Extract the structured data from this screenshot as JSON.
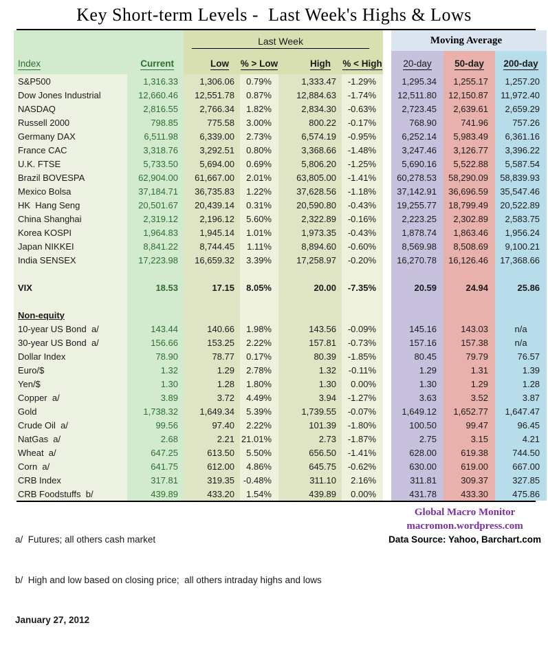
{
  "title": "Key Short-term Levels -  Last Week's Highs & Lows",
  "colors": {
    "green_band": "#d2ebcf",
    "name_cells": "#edf1e2",
    "olive_band": "#d8dfb0",
    "low_high_cells": "#dfe4c4",
    "pct_cells": "#eef2dc",
    "moving_avg_band": "#dce6f1",
    "ma20_col": "#c8c1dd",
    "ma50_col": "#e9b1ab",
    "ma200_col": "#b7dcea",
    "green_text": "#2e6d30",
    "brand_purple": "#7a30a0"
  },
  "table": {
    "group_last_week": "Last Week",
    "group_moving_average": "Moving Average",
    "columns": {
      "index": "Index",
      "current": "Current",
      "low": "Low",
      "pct_above_low": "% > Low",
      "high": "High",
      "pct_below_high": "% < High",
      "ma20": "20-day",
      "ma50": "50-day",
      "ma200": "200-day"
    },
    "rows": [
      {
        "type": "data",
        "name": "S&P500",
        "values": [
          "1,316.33",
          "1,306.06",
          "0.79%",
          "1,333.47",
          "-1.29%",
          "1,295.34",
          "1,255.17",
          "1,257.20"
        ]
      },
      {
        "type": "data",
        "name": "Dow Jones Industrial",
        "values": [
          "12,660.46",
          "12,551.78",
          "0.87%",
          "12,884.63",
          "-1.74%",
          "12,511.80",
          "12,150.87",
          "11,972.40"
        ]
      },
      {
        "type": "data",
        "name": "NASDAQ",
        "values": [
          "2,816.55",
          "2,766.34",
          "1.82%",
          "2,834.30",
          "-0.63%",
          "2,723.45",
          "2,639.61",
          "2,659.29"
        ]
      },
      {
        "type": "data",
        "name": "Russell 2000",
        "values": [
          "798.85",
          "775.58",
          "3.00%",
          "800.22",
          "-0.17%",
          "768.90",
          "741.96",
          "757.26"
        ]
      },
      {
        "type": "data",
        "name": "Germany DAX",
        "values": [
          "6,511.98",
          "6,339.00",
          "2.73%",
          "6,574.19",
          "-0.95%",
          "6,252.14",
          "5,983.49",
          "6,361.16"
        ]
      },
      {
        "type": "data",
        "name": "France CAC",
        "values": [
          "3,318.76",
          "3,292.51",
          "0.80%",
          "3,368.66",
          "-1.48%",
          "3,247.46",
          "3,126.77",
          "3,396.22"
        ]
      },
      {
        "type": "data",
        "name": "U.K. FTSE",
        "values": [
          "5,733.50",
          "5,694.00",
          "0.69%",
          "5,806.20",
          "-1.25%",
          "5,690.16",
          "5,522.88",
          "5,587.54"
        ]
      },
      {
        "type": "data",
        "name": "Brazil BOVESPA",
        "values": [
          "62,904.00",
          "61,667.00",
          "2.01%",
          "63,805.00",
          "-1.41%",
          "60,278.53",
          "58,290.09",
          "58,839.93"
        ]
      },
      {
        "type": "data",
        "name": "Mexico Bolsa",
        "values": [
          "37,184.71",
          "36,735.83",
          "1.22%",
          "37,628.56",
          "-1.18%",
          "37,142.91",
          "36,696.59",
          "35,547.46"
        ]
      },
      {
        "type": "data",
        "name": "HK  Hang Seng",
        "values": [
          "20,501.67",
          "20,439.14",
          "0.31%",
          "20,590.80",
          "-0.43%",
          "19,255.77",
          "18,799.49",
          "20,522.89"
        ]
      },
      {
        "type": "data",
        "name": "China Shanghai",
        "values": [
          "2,319.12",
          "2,196.12",
          "5.60%",
          "2,322.89",
          "-0.16%",
          "2,223.25",
          "2,302.89",
          "2,583.75"
        ]
      },
      {
        "type": "data",
        "name": "Korea KOSPI",
        "values": [
          "1,964.83",
          "1,945.14",
          "1.01%",
          "1,973.35",
          "-0.43%",
          "1,878.74",
          "1,863.46",
          "1,956.24"
        ]
      },
      {
        "type": "data",
        "name": "Japan NIKKEI",
        "values": [
          "8,841.22",
          "8,744.45",
          "1.11%",
          "8,894.60",
          "-0.60%",
          "8,569.98",
          "8,508.69",
          "9,100.21"
        ]
      },
      {
        "type": "data",
        "name": "India SENSEX",
        "values": [
          "17,223.98",
          "16,659.32",
          "3.39%",
          "17,258.97",
          "-0.20%",
          "16,270.78",
          "16,126.46",
          "17,368.66"
        ]
      },
      {
        "type": "spacer",
        "height": 8
      },
      {
        "type": "vix",
        "name": "VIX",
        "values": [
          "18.53",
          "17.15",
          "8.05%",
          "20.00",
          "-7.35%",
          "20.59",
          "24.94",
          "25.86"
        ]
      },
      {
        "type": "spacer",
        "height": 12
      },
      {
        "type": "section",
        "name": "Non-equity"
      },
      {
        "type": "data",
        "name": "10-year US Bond  a/",
        "values": [
          "143.44",
          "140.66",
          "1.98%",
          "143.56",
          "-0.09%",
          "145.16",
          "143.03",
          "n/a"
        ]
      },
      {
        "type": "data",
        "name": "30-year US Bond  a/",
        "values": [
          "156.66",
          "153.25",
          "2.22%",
          "157.81",
          "-0.73%",
          "157.16",
          "157.38",
          "n/a"
        ]
      },
      {
        "type": "data",
        "name": "Dollar Index",
        "values": [
          "78.90",
          "78.77",
          "0.17%",
          "80.39",
          "-1.85%",
          "80.45",
          "79.79",
          "76.57"
        ]
      },
      {
        "type": "data",
        "name": "Euro/$",
        "values": [
          "1.32",
          "1.29",
          "2.78%",
          "1.32",
          "-0.11%",
          "1.29",
          "1.31",
          "1.39"
        ]
      },
      {
        "type": "data",
        "name": "Yen/$",
        "values": [
          "1.30",
          "1.28",
          "1.80%",
          "1.30",
          "0.00%",
          "1.30",
          "1.29",
          "1.28"
        ]
      },
      {
        "type": "data",
        "name": "Copper  a/",
        "values": [
          "3.89",
          "3.72",
          "4.49%",
          "3.94",
          "-1.27%",
          "3.63",
          "3.52",
          "3.87"
        ]
      },
      {
        "type": "data",
        "name": "Gold",
        "values": [
          "1,738.32",
          "1,649.34",
          "5.39%",
          "1,739.55",
          "-0.07%",
          "1,649.12",
          "1,652.77",
          "1,647.47"
        ]
      },
      {
        "type": "data",
        "name": "Crude Oil  a/",
        "values": [
          "99.56",
          "97.40",
          "2.22%",
          "101.39",
          "-1.80%",
          "100.50",
          "99.47",
          "96.45"
        ]
      },
      {
        "type": "data",
        "name": "NatGas  a/",
        "values": [
          "2.68",
          "2.21",
          "21.01%",
          "2.73",
          "-1.87%",
          "2.75",
          "3.15",
          "4.21"
        ]
      },
      {
        "type": "data",
        "name": "Wheat  a/",
        "values": [
          "647.25",
          "613.50",
          "5.50%",
          "656.50",
          "-1.41%",
          "628.00",
          "619.38",
          "744.50"
        ]
      },
      {
        "type": "data",
        "name": "Corn  a/",
        "values": [
          "641.75",
          "612.00",
          "4.86%",
          "645.75",
          "-0.62%",
          "630.00",
          "619.00",
          "667.00"
        ]
      },
      {
        "type": "data",
        "name": "CRB Index",
        "values": [
          "317.81",
          "319.35",
          "-0.48%",
          "311.10",
          "2.16%",
          "311.81",
          "309.37",
          "327.85"
        ]
      },
      {
        "type": "data",
        "name": "CRB Foodstuffs  b/",
        "values": [
          "439.89",
          "433.20",
          "1.54%",
          "439.89",
          "0.00%",
          "431.78",
          "433.30",
          "475.86"
        ]
      }
    ]
  },
  "footnotes": {
    "a": "a/  Futures; all others cash market",
    "b": "b/  High and low based on closing price;  all others intraday highs and lows",
    "date": "January 27, 2012"
  },
  "branding": {
    "name": "Global Macro Monitor",
    "url": "macromon.wordpress.com",
    "source": "Data Source: Yahoo, Barchart.com"
  }
}
